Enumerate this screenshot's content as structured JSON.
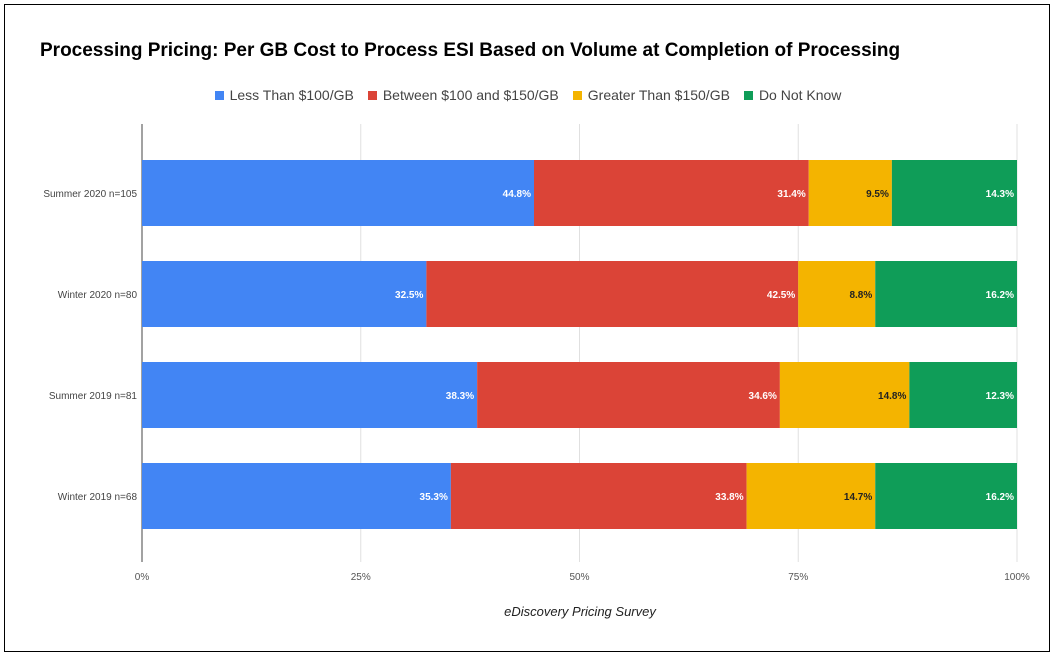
{
  "chart_data": {
    "type": "bar",
    "orientation": "horizontal",
    "stacked": true,
    "percent": true,
    "title": "Processing Pricing: Per GB Cost to Process ESI Based on Volume at Completion of Processing",
    "caption": "eDiscovery Pricing Survey",
    "xlabel": "",
    "ylabel": "",
    "xlim": [
      0,
      100
    ],
    "categories": [
      "Summer 2020 n=105",
      "Winter 2020 n=80",
      "Summer 2019 n=81",
      "Winter 2019 n=68"
    ],
    "series": [
      {
        "name": "Less Than $100/GB",
        "color": "#4285f4",
        "values": [
          44.8,
          32.5,
          38.3,
          35.3
        ],
        "labels": [
          "44.8%",
          "32.5%",
          "38.3%",
          "35.3%"
        ],
        "label_color": "#ffffff"
      },
      {
        "name": "Between $100 and $150/GB",
        "color": "#db4437",
        "values": [
          31.4,
          42.5,
          34.6,
          33.8
        ],
        "labels": [
          "31.4%",
          "42.5%",
          "34.6%",
          "33.8%"
        ],
        "label_color": "#ffffff"
      },
      {
        "name": "Greater Than $150/GB",
        "color": "#f4b400",
        "values": [
          9.5,
          8.8,
          14.8,
          14.7
        ],
        "labels": [
          "9.5%",
          "8.8%",
          "14.8%",
          "14.7%"
        ],
        "label_color": "#222222"
      },
      {
        "name": "Do Not Know",
        "color": "#0f9d58",
        "values": [
          14.3,
          16.2,
          12.3,
          16.2
        ],
        "labels": [
          "14.3%",
          "16.2%",
          "12.3%",
          "16.2%"
        ],
        "label_color": "#ffffff"
      }
    ],
    "x_ticks": [
      0,
      25,
      50,
      75,
      100
    ],
    "x_tick_labels": [
      "0%",
      "25%",
      "50%",
      "75%",
      "100%"
    ],
    "grid": true,
    "legend_position": "top"
  }
}
